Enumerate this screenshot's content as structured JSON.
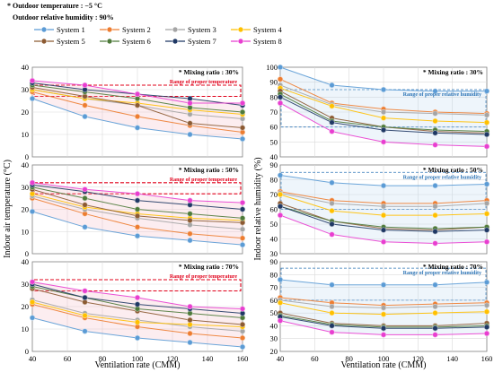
{
  "conditions": {
    "temperature": "* Outdoor temperature : −5 °C",
    "humidity": "Outdoor relative humidity : 90%"
  },
  "colors": {
    "System 1": "#5b9bd5",
    "System 2": "#ed7d31",
    "System 3": "#a5a5a5",
    "System 4": "#ffc000",
    "System 5": "#8c5a32",
    "System 6": "#4e7a3a",
    "System 7": "#1f3864",
    "System 8": "#e83ed0",
    "temp_band": "#f4b8c4",
    "temp_band_border": "#e0001a",
    "hum_band": "#bdd7ee",
    "hum_band_border": "#2e75b6"
  },
  "legend": [
    "System 1",
    "System 2",
    "System 3",
    "System 4",
    "System 5",
    "System 6",
    "System 7",
    "System 8"
  ],
  "axes": {
    "x_label": "Ventilation rate (CMM)",
    "left_y_label": "Indoor air temperature (°C)",
    "right_y_label": "Indoor relative humidity (%)"
  },
  "band_labels": {
    "temperature": "Range of proper temperature",
    "humidity": "Range of proper relative humidity"
  },
  "chart_data": [
    {
      "type": "line",
      "panel": "temperature",
      "title": "* Mixing ratio : 30%",
      "x": [
        40,
        70,
        100,
        130,
        160
      ],
      "xlim": [
        40,
        160
      ],
      "ylim": [
        0,
        40
      ],
      "yticks": [
        0,
        10,
        20,
        30,
        40
      ],
      "band": [
        27,
        32
      ],
      "series": [
        {
          "name": "System 1",
          "values": [
            26,
            18,
            13,
            10,
            8
          ]
        },
        {
          "name": "System 2",
          "values": [
            29,
            23,
            18,
            14,
            11
          ]
        },
        {
          "name": "System 3",
          "values": [
            30,
            26,
            23,
            19,
            17
          ]
        },
        {
          "name": "System 4",
          "values": [
            30,
            26,
            24,
            21,
            19
          ]
        },
        {
          "name": "System 5",
          "values": [
            31,
            27,
            23,
            15,
            13
          ]
        },
        {
          "name": "System 6",
          "values": [
            32,
            29,
            26,
            22,
            20
          ]
        },
        {
          "name": "System 7",
          "values": [
            33,
            30,
            28,
            26,
            23
          ]
        },
        {
          "name": "System 8",
          "values": [
            34,
            32,
            28,
            24,
            24
          ]
        }
      ]
    },
    {
      "type": "line",
      "panel": "temperature",
      "title": "* Mixing ratio : 50%",
      "x": [
        40,
        70,
        100,
        130,
        160
      ],
      "xlim": [
        40,
        160
      ],
      "ylim": [
        0,
        40
      ],
      "yticks": [
        0,
        10,
        20,
        30,
        40
      ],
      "band": [
        27,
        32
      ],
      "series": [
        {
          "name": "System 1",
          "values": [
            19,
            12,
            8,
            6,
            4
          ]
        },
        {
          "name": "System 2",
          "values": [
            25,
            18,
            12,
            9,
            7
          ]
        },
        {
          "name": "System 3",
          "values": [
            26,
            20,
            16,
            13,
            11
          ]
        },
        {
          "name": "System 4",
          "values": [
            27,
            21,
            18,
            16,
            15
          ]
        },
        {
          "name": "System 5",
          "values": [
            29,
            22,
            17,
            15,
            14
          ]
        },
        {
          "name": "System 6",
          "values": [
            30,
            25,
            20,
            18,
            16
          ]
        },
        {
          "name": "System 7",
          "values": [
            31,
            28,
            24,
            22,
            20
          ]
        },
        {
          "name": "System 8",
          "values": [
            32,
            29,
            27,
            24,
            23
          ]
        }
      ]
    },
    {
      "type": "line",
      "panel": "temperature",
      "title": "* Mixing ratio : 70%",
      "x": [
        40,
        70,
        100,
        130,
        160
      ],
      "xlim": [
        40,
        160
      ],
      "ylim": [
        0,
        40
      ],
      "yticks": [
        0,
        10,
        20,
        30,
        40
      ],
      "band": [
        27,
        32
      ],
      "series": [
        {
          "name": "System 1",
          "values": [
            15,
            9,
            6,
            4,
            2
          ]
        },
        {
          "name": "System 2",
          "values": [
            21,
            15,
            11,
            8,
            6
          ]
        },
        {
          "name": "System 3",
          "values": [
            23,
            17,
            14,
            11,
            9
          ]
        },
        {
          "name": "System 4",
          "values": [
            22,
            16,
            13,
            12,
            11
          ]
        },
        {
          "name": "System 5",
          "values": [
            28,
            22,
            18,
            14,
            12
          ]
        },
        {
          "name": "System 6",
          "values": [
            29,
            24,
            19,
            17,
            15
          ]
        },
        {
          "name": "System 7",
          "values": [
            30,
            24,
            21,
            19,
            17
          ]
        },
        {
          "name": "System 8",
          "values": [
            31,
            27,
            24,
            20,
            19
          ]
        }
      ]
    },
    {
      "type": "line",
      "panel": "humidity",
      "title": "* Mixing ratio : 30%",
      "x": [
        40,
        70,
        100,
        130,
        160
      ],
      "xlim": [
        40,
        160
      ],
      "ylim": [
        40,
        100
      ],
      "yticks": [
        40,
        50,
        60,
        70,
        80,
        90,
        100
      ],
      "band": [
        60,
        85
      ],
      "series": [
        {
          "name": "System 1",
          "values": [
            100,
            88,
            85,
            84,
            84
          ]
        },
        {
          "name": "System 2",
          "values": [
            92,
            76,
            72,
            70,
            69
          ]
        },
        {
          "name": "System 3",
          "values": [
            88,
            75,
            70,
            69,
            68
          ]
        },
        {
          "name": "System 4",
          "values": [
            86,
            74,
            66,
            64,
            63
          ]
        },
        {
          "name": "System 5",
          "values": [
            84,
            66,
            60,
            57,
            56
          ]
        },
        {
          "name": "System 6",
          "values": [
            82,
            64,
            60,
            58,
            57
          ]
        },
        {
          "name": "System 7",
          "values": [
            80,
            63,
            58,
            56,
            55
          ]
        },
        {
          "name": "System 8",
          "values": [
            76,
            57,
            50,
            48,
            47
          ]
        }
      ]
    },
    {
      "type": "line",
      "panel": "humidity",
      "title": "* Mixing ratio : 50%",
      "x": [
        40,
        70,
        100,
        130,
        160
      ],
      "xlim": [
        40,
        160
      ],
      "ylim": [
        30,
        90
      ],
      "yticks": [
        30,
        40,
        50,
        60,
        70,
        80,
        90
      ],
      "band": [
        60,
        85
      ],
      "series": [
        {
          "name": "System 1",
          "values": [
            83,
            78,
            76,
            76,
            77
          ]
        },
        {
          "name": "System 2",
          "values": [
            72,
            66,
            64,
            64,
            66
          ]
        },
        {
          "name": "System 3",
          "values": [
            71,
            64,
            62,
            62,
            64
          ]
        },
        {
          "name": "System 4",
          "values": [
            70,
            59,
            56,
            56,
            57
          ]
        },
        {
          "name": "System 5",
          "values": [
            64,
            52,
            47,
            46,
            48
          ]
        },
        {
          "name": "System 6",
          "values": [
            62,
            52,
            48,
            47,
            48
          ]
        },
        {
          "name": "System 7",
          "values": [
            62,
            50,
            46,
            45,
            46
          ]
        },
        {
          "name": "System 8",
          "values": [
            56,
            43,
            38,
            37,
            38
          ]
        }
      ]
    },
    {
      "type": "line",
      "panel": "humidity",
      "title": "* Mixing ratio : 70%",
      "x": [
        40,
        70,
        100,
        130,
        160
      ],
      "xlim": [
        40,
        160
      ],
      "ylim": [
        20,
        90
      ],
      "yticks": [
        20,
        30,
        40,
        50,
        60,
        70,
        80,
        90
      ],
      "band": [
        60,
        85
      ],
      "series": [
        {
          "name": "System 1",
          "values": [
            76,
            72,
            72,
            72,
            74
          ]
        },
        {
          "name": "System 2",
          "values": [
            62,
            58,
            56,
            57,
            58
          ]
        },
        {
          "name": "System 3",
          "values": [
            60,
            55,
            54,
            55,
            56
          ]
        },
        {
          "name": "System 4",
          "values": [
            58,
            50,
            49,
            50,
            51
          ]
        },
        {
          "name": "System 5",
          "values": [
            50,
            42,
            40,
            40,
            42
          ]
        },
        {
          "name": "System 6",
          "values": [
            48,
            41,
            39,
            39,
            40
          ]
        },
        {
          "name": "System 7",
          "values": [
            47,
            40,
            38,
            38,
            39
          ]
        },
        {
          "name": "System 8",
          "values": [
            44,
            35,
            33,
            33,
            34
          ]
        }
      ]
    }
  ]
}
